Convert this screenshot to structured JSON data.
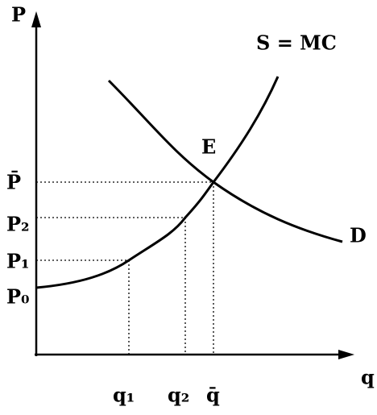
{
  "axes": {
    "y_label": "P",
    "x_label": "q"
  },
  "curves": {
    "supply": "S = MC",
    "demand": "D"
  },
  "equilibrium": "E",
  "price_labels": [
    "P̄",
    "P₂",
    "P₁",
    "P₀"
  ],
  "quantity_labels": [
    "q₁",
    "q₂",
    "q̄"
  ]
}
